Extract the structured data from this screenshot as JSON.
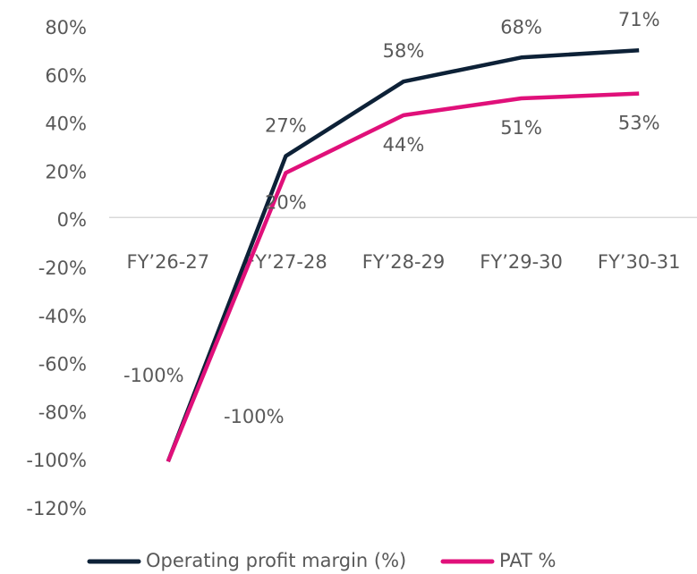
{
  "chart_data": {
    "type": "line",
    "categories": [
      "FY’26-27",
      "FY’27-28",
      "FY’28-29",
      "FY’29-30",
      "FY’30-31"
    ],
    "series": [
      {
        "name": "Operating profit margin (%)",
        "color": "#0d2137",
        "values": [
          -100,
          27,
          58,
          68,
          71
        ],
        "value_labels": [
          "-100%",
          "27%",
          "58%",
          "68%",
          "71%"
        ]
      },
      {
        "name": "PAT %",
        "color": "#e0107a",
        "values": [
          -100,
          20,
          44,
          51,
          53
        ],
        "value_labels": [
          "-100%",
          "20%",
          "44%",
          "51%",
          "53%"
        ]
      }
    ],
    "ylim": [
      -120,
      80
    ],
    "yticks": [
      {
        "value": -120,
        "label": "-120%"
      },
      {
        "value": -100,
        "label": "-100%"
      },
      {
        "value": -80,
        "label": "-80%"
      },
      {
        "value": -60,
        "label": "-60%"
      },
      {
        "value": -40,
        "label": "-40%"
      },
      {
        "value": -20,
        "label": "-20%"
      },
      {
        "value": 0,
        "label": "0%"
      },
      {
        "value": 20,
        "label": "20%"
      },
      {
        "value": 40,
        "label": "40%"
      },
      {
        "value": 60,
        "label": "60%"
      },
      {
        "value": 80,
        "label": "80%"
      }
    ],
    "legend": "bottom"
  }
}
